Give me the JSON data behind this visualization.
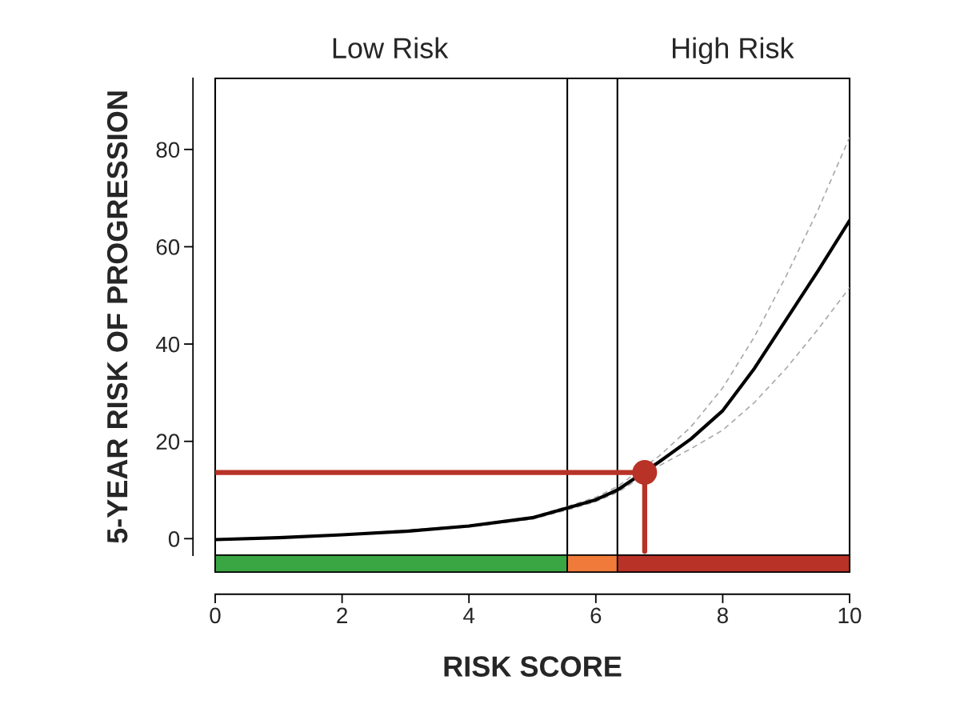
{
  "chart_data": [
    {
      "type": "line",
      "ylabel": "5-YEAR RISK OF PROGRESSION",
      "xlim": [
        0,
        10
      ],
      "ylim": [
        -3.4,
        94.6
      ],
      "xticks": [
        0,
        2,
        4,
        6,
        8,
        10
      ],
      "yticks": [
        0,
        20,
        40,
        60,
        80
      ],
      "tick_labels": "y",
      "grid": false,
      "legend": false,
      "series": [
        {
          "color": "#aaaaaa",
          "line_style": "dashed",
          "marker": "none",
          "x": [
            0,
            2,
            4,
            5,
            5.55,
            6,
            6.34,
            7,
            7.5,
            8,
            8.5,
            9,
            9.5,
            10
          ],
          "values": [
            -0.2,
            0.8,
            2.7,
            4.5,
            6.6,
            8.5,
            10.7,
            17,
            23,
            31,
            41.5,
            54,
            67.5,
            82.5
          ]
        },
        {
          "color": "#aaaaaa",
          "line_style": "dashed",
          "marker": "none",
          "x": [
            0,
            2,
            4,
            5,
            5.55,
            6,
            6.34,
            7,
            7.5,
            8,
            8.5,
            9,
            9.5,
            10
          ],
          "values": [
            -0.2,
            0.7,
            2.4,
            4.0,
            5.9,
            7.6,
            9.5,
            15,
            18.5,
            22.3,
            28,
            35,
            43,
            51.6
          ]
        },
        {
          "color": "#000000",
          "line_style": "solid",
          "marker": "none",
          "x": [
            0,
            1,
            2,
            3,
            4,
            5,
            5.55,
            6,
            6.34,
            7,
            7.5,
            8,
            8.5,
            9,
            9.5,
            10
          ],
          "values": [
            -0.2,
            0.2,
            0.8,
            1.5,
            2.6,
            4.3,
            6.3,
            8,
            10,
            15.8,
            20.5,
            26.3,
            35,
            45,
            55,
            65.4
          ]
        },
        {
          "color": "#b83227",
          "line_style": "solid",
          "marker": "none",
          "x": [
            0,
            6.77,
            6.77
          ],
          "values": [
            13.6,
            13.6,
            -2.6
          ]
        },
        {
          "type": "scatter",
          "color": "#b83227",
          "marker": "circle",
          "x": [
            6.77
          ],
          "values": [
            13.6
          ]
        }
      ],
      "ref_lines": [
        {
          "axis": "x",
          "value": 5.55,
          "color": "#000000"
        },
        {
          "axis": "x",
          "value": 6.34,
          "color": "#000000"
        }
      ],
      "annotations": [
        "Low Risk",
        "High Risk"
      ]
    },
    {
      "type": "bar",
      "orientation": "horizontal",
      "stacked": true,
      "xlabel": "RISK SCORE",
      "categories": [
        null
      ],
      "xlim": [
        0,
        10
      ],
      "xticks": [
        0,
        2,
        4,
        6,
        8,
        10
      ],
      "tick_labels": "x",
      "legend": false,
      "grid": false,
      "series": [
        {
          "color": "#3aa643",
          "values": [
            5.55
          ]
        },
        {
          "color": "#f07a3a",
          "values": [
            0.79
          ]
        },
        {
          "color": "#b83227",
          "values": [
            3.66
          ]
        }
      ]
    }
  ]
}
